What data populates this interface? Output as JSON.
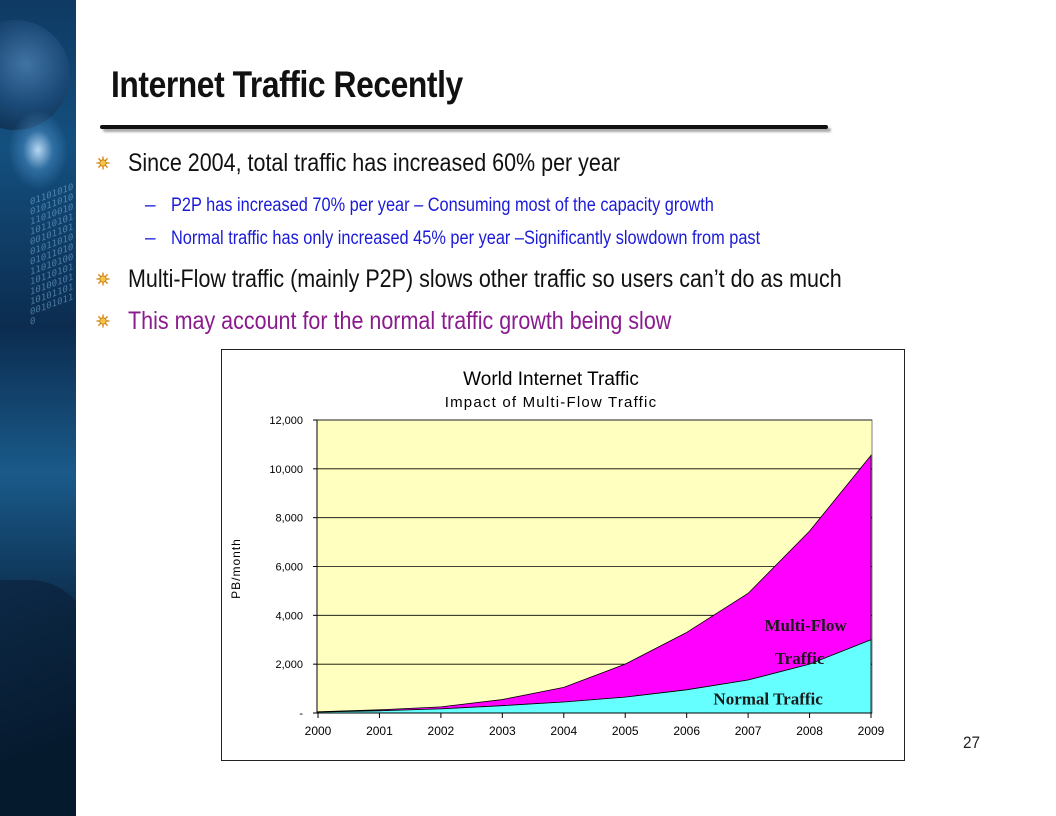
{
  "slide": {
    "title": "Internet Traffic Recently",
    "page_number": "27",
    "bullets": [
      {
        "text": "Since 2004, total traffic has increased 60% per year"
      },
      {
        "text": "P2P has increased 70% per year – Consuming most of the capacity growth"
      },
      {
        "text": "Normal traffic has only increased 45% per year –Significantly slowdown from past"
      },
      {
        "text": "Multi-Flow traffic (mainly P2P) slows other traffic so users can’t do as much"
      },
      {
        "text": "This may account for the normal traffic growth being slow"
      }
    ],
    "sub_bullet_marker": "–"
  },
  "colors": {
    "title": "#111111",
    "sub_bullet_text": "#1a1ad8",
    "highlight_text": "#8b1a8e",
    "plot_background": "#ffffc0",
    "normal_traffic_fill": "#66ffff",
    "multiflow_fill": "#ff00ff"
  },
  "chart_data": {
    "type": "area",
    "title": "World Internet Traffic",
    "subtitle": "Impact of Multi-Flow Traffic",
    "xlabel": "",
    "ylabel": "PB/month",
    "stacked": true,
    "x": [
      "2000",
      "2001",
      "2002",
      "2003",
      "2004",
      "2005",
      "2006",
      "2007",
      "2008",
      "2009"
    ],
    "ylim": [
      0,
      12000
    ],
    "yticks": [
      0,
      2000,
      4000,
      6000,
      8000,
      10000,
      12000
    ],
    "ytick_labels": [
      "-",
      "2,000",
      "4,000",
      "6,000",
      "8,000",
      "10,000",
      "12,000"
    ],
    "grid": true,
    "series": [
      {
        "name": "Normal Traffic",
        "values": [
          40,
          90,
          170,
          300,
          450,
          650,
          950,
          1350,
          2000,
          3000
        ]
      },
      {
        "name": "Multi-Flow Traffic",
        "values": [
          10,
          40,
          80,
          250,
          600,
          1350,
          2350,
          3550,
          5450,
          7550
        ]
      }
    ],
    "annotations": [
      {
        "text": "Multi-Flow",
        "series": "Multi-Flow Traffic"
      },
      {
        "text": "Traffic",
        "series": "Multi-Flow Traffic"
      },
      {
        "text": "Normal Traffic",
        "series": "Normal Traffic"
      }
    ]
  }
}
